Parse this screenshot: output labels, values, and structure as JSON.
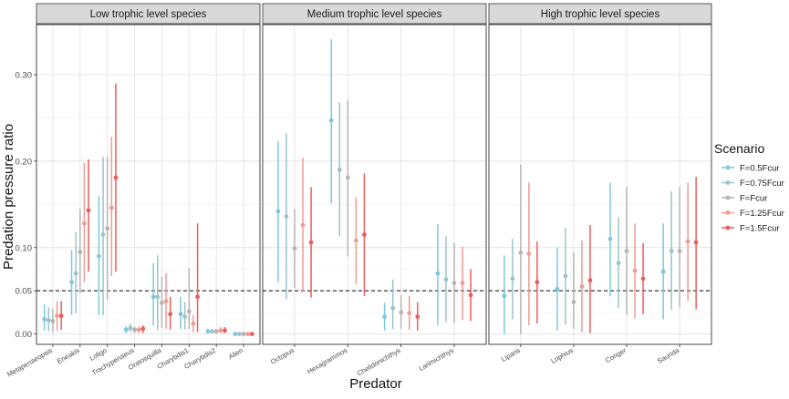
{
  "chart_data": {
    "type": "errorbar",
    "ylabel": "Predation pressure ratio",
    "xlabel": "Predator",
    "ylim": [
      -0.012,
      0.358
    ],
    "yticks": [
      0.0,
      0.05,
      0.1,
      0.2,
      0.3
    ],
    "ytick_labels": [
      "0.00",
      "0.05",
      "0.10",
      "0.20",
      "0.30"
    ],
    "reference_line": 0.05,
    "legend": {
      "title": "Scenario",
      "position": "right",
      "items": [
        {
          "label": "F=0.5Fcur",
          "color": "#7ec8de"
        },
        {
          "label": "F=0.75Fcur",
          "color": "#9cc3c8"
        },
        {
          "label": "F=Fcur",
          "color": "#b4b4b4"
        },
        {
          "label": "F=1.25Fcur",
          "color": "#ec9c96"
        },
        {
          "label": "F=1.5Fcur",
          "color": "#ee5d5d"
        }
      ]
    },
    "panels": [
      {
        "title": "Low trophic level species",
        "predators": [
          {
            "name": "Metapenaeopsis",
            "points": [
              {
                "mean": 0.017,
                "low": 0.004,
                "high": 0.034
              },
              {
                "mean": 0.016,
                "low": 0.003,
                "high": 0.031
              },
              {
                "mean": 0.015,
                "low": 0.002,
                "high": 0.029
              },
              {
                "mean": 0.021,
                "low": 0.004,
                "high": 0.038
              },
              {
                "mean": 0.021,
                "low": 0.005,
                "high": 0.038
              }
            ]
          },
          {
            "name": "Eneakis",
            "points": [
              {
                "mean": 0.06,
                "low": 0.022,
                "high": 0.097
              },
              {
                "mean": 0.07,
                "low": 0.024,
                "high": 0.118
              },
              {
                "mean": 0.095,
                "low": 0.047,
                "high": 0.145
              },
              {
                "mean": 0.128,
                "low": 0.06,
                "high": 0.198
              },
              {
                "mean": 0.143,
                "low": 0.072,
                "high": 0.202
              }
            ]
          },
          {
            "name": "Loligo",
            "points": [
              {
                "mean": 0.09,
                "low": 0.022,
                "high": 0.16
              },
              {
                "mean": 0.115,
                "low": 0.022,
                "high": 0.205
              },
              {
                "mean": 0.122,
                "low": 0.04,
                "high": 0.205
              },
              {
                "mean": 0.146,
                "low": 0.067,
                "high": 0.228
              },
              {
                "mean": 0.181,
                "low": 0.072,
                "high": 0.29
              }
            ]
          },
          {
            "name": "Trachypenaeus",
            "points": [
              {
                "mean": 0.005,
                "low": 0.001,
                "high": 0.009
              },
              {
                "mean": 0.007,
                "low": 0.002,
                "high": 0.012
              },
              {
                "mean": 0.005,
                "low": 0.001,
                "high": 0.008
              },
              {
                "mean": 0.005,
                "low": 0.001,
                "high": 0.009
              },
              {
                "mean": 0.006,
                "low": 0.001,
                "high": 0.01
              }
            ]
          },
          {
            "name": "Oratosquilla",
            "points": [
              {
                "mean": 0.043,
                "low": 0.01,
                "high": 0.082
              },
              {
                "mean": 0.043,
                "low": 0.005,
                "high": 0.091
              },
              {
                "mean": 0.036,
                "low": 0.007,
                "high": 0.066
              },
              {
                "mean": 0.038,
                "low": 0.006,
                "high": 0.07
              },
              {
                "mean": 0.023,
                "low": 0.005,
                "high": 0.043
              }
            ]
          },
          {
            "name": "Charybdis1",
            "points": [
              {
                "mean": 0.023,
                "low": 0.006,
                "high": 0.043
              },
              {
                "mean": 0.02,
                "low": 0.005,
                "high": 0.037
              },
              {
                "mean": 0.026,
                "low": 0.006,
                "high": 0.076
              },
              {
                "mean": 0.012,
                "low": 0.002,
                "high": 0.022
              },
              {
                "mean": 0.043,
                "low": 0.002,
                "high": 0.128
              }
            ]
          },
          {
            "name": "Charybdis2",
            "points": [
              {
                "mean": 0.003,
                "low": 0.001,
                "high": 0.006
              },
              {
                "mean": 0.003,
                "low": 0.001,
                "high": 0.006
              },
              {
                "mean": 0.003,
                "low": 0.001,
                "high": 0.006
              },
              {
                "mean": 0.004,
                "low": 0.001,
                "high": 0.008
              },
              {
                "mean": 0.004,
                "low": 0.001,
                "high": 0.008
              }
            ]
          },
          {
            "name": "Alien",
            "points": [
              {
                "mean": 0.0,
                "low": 0.0,
                "high": 0.001
              },
              {
                "mean": 0.0,
                "low": 0.0,
                "high": 0.001
              },
              {
                "mean": 0.0,
                "low": 0.0,
                "high": 0.001
              },
              {
                "mean": 0.0,
                "low": 0.0,
                "high": 0.001
              },
              {
                "mean": 0.0,
                "low": 0.0,
                "high": 0.001
              }
            ]
          }
        ]
      },
      {
        "title": "Medium trophic level species",
        "predators": [
          {
            "name": "Octopus",
            "points": [
              {
                "mean": 0.142,
                "low": 0.06,
                "high": 0.223
              },
              {
                "mean": 0.136,
                "low": 0.04,
                "high": 0.232
              },
              {
                "mean": 0.099,
                "low": 0.053,
                "high": 0.145
              },
              {
                "mean": 0.126,
                "low": 0.049,
                "high": 0.204
              },
              {
                "mean": 0.106,
                "low": 0.042,
                "high": 0.17
              }
            ]
          },
          {
            "name": "Hexagrammos",
            "points": [
              {
                "mean": 0.247,
                "low": 0.151,
                "high": 0.341
              },
              {
                "mean": 0.19,
                "low": 0.113,
                "high": 0.268
              },
              {
                "mean": 0.181,
                "low": 0.09,
                "high": 0.27
              },
              {
                "mean": 0.108,
                "low": 0.058,
                "high": 0.158
              },
              {
                "mean": 0.115,
                "low": 0.044,
                "high": 0.186
              }
            ]
          },
          {
            "name": "Chelidonichthys",
            "points": [
              {
                "mean": 0.02,
                "low": 0.004,
                "high": 0.036
              },
              {
                "mean": 0.03,
                "low": 0.006,
                "high": 0.063
              },
              {
                "mean": 0.025,
                "low": 0.006,
                "high": 0.045
              },
              {
                "mean": 0.024,
                "low": 0.005,
                "high": 0.044
              },
              {
                "mean": 0.02,
                "low": 0.004,
                "high": 0.037
              }
            ]
          },
          {
            "name": "Larimichthys",
            "points": [
              {
                "mean": 0.07,
                "low": 0.01,
                "high": 0.127
              },
              {
                "mean": 0.063,
                "low": 0.014,
                "high": 0.113
              },
              {
                "mean": 0.059,
                "low": 0.013,
                "high": 0.105
              },
              {
                "mean": 0.059,
                "low": 0.016,
                "high": 0.101
              },
              {
                "mean": 0.045,
                "low": 0.015,
                "high": 0.075
              }
            ]
          }
        ]
      },
      {
        "title": "High trophic level species",
        "predators": [
          {
            "name": "Liparis",
            "points": [
              {
                "mean": 0.044,
                "low": 0.0,
                "high": 0.091
              },
              {
                "mean": 0.064,
                "low": 0.017,
                "high": 0.11
              },
              {
                "mean": 0.094,
                "low": 0.0,
                "high": 0.196
              },
              {
                "mean": 0.093,
                "low": 0.01,
                "high": 0.175
              },
              {
                "mean": 0.06,
                "low": 0.012,
                "high": 0.107
              }
            ]
          },
          {
            "name": "Lophius",
            "points": [
              {
                "mean": 0.052,
                "low": 0.004,
                "high": 0.1
              },
              {
                "mean": 0.067,
                "low": 0.011,
                "high": 0.123
              },
              {
                "mean": 0.037,
                "low": 0.006,
                "high": 0.094
              },
              {
                "mean": 0.055,
                "low": 0.002,
                "high": 0.108
              },
              {
                "mean": 0.062,
                "low": 0.001,
                "high": 0.126
              }
            ]
          },
          {
            "name": "Conger",
            "points": [
              {
                "mean": 0.11,
                "low": 0.044,
                "high": 0.175
              },
              {
                "mean": 0.082,
                "low": 0.03,
                "high": 0.135
              },
              {
                "mean": 0.096,
                "low": 0.022,
                "high": 0.17
              },
              {
                "mean": 0.073,
                "low": 0.018,
                "high": 0.128
              },
              {
                "mean": 0.064,
                "low": 0.023,
                "high": 0.105
              }
            ]
          },
          {
            "name": "Saurida",
            "points": [
              {
                "mean": 0.072,
                "low": 0.017,
                "high": 0.128
              },
              {
                "mean": 0.096,
                "low": 0.028,
                "high": 0.165
              },
              {
                "mean": 0.096,
                "low": 0.031,
                "high": 0.17
              },
              {
                "mean": 0.107,
                "low": 0.038,
                "high": 0.175
              },
              {
                "mean": 0.106,
                "low": 0.029,
                "high": 0.182
              }
            ]
          }
        ]
      }
    ]
  }
}
